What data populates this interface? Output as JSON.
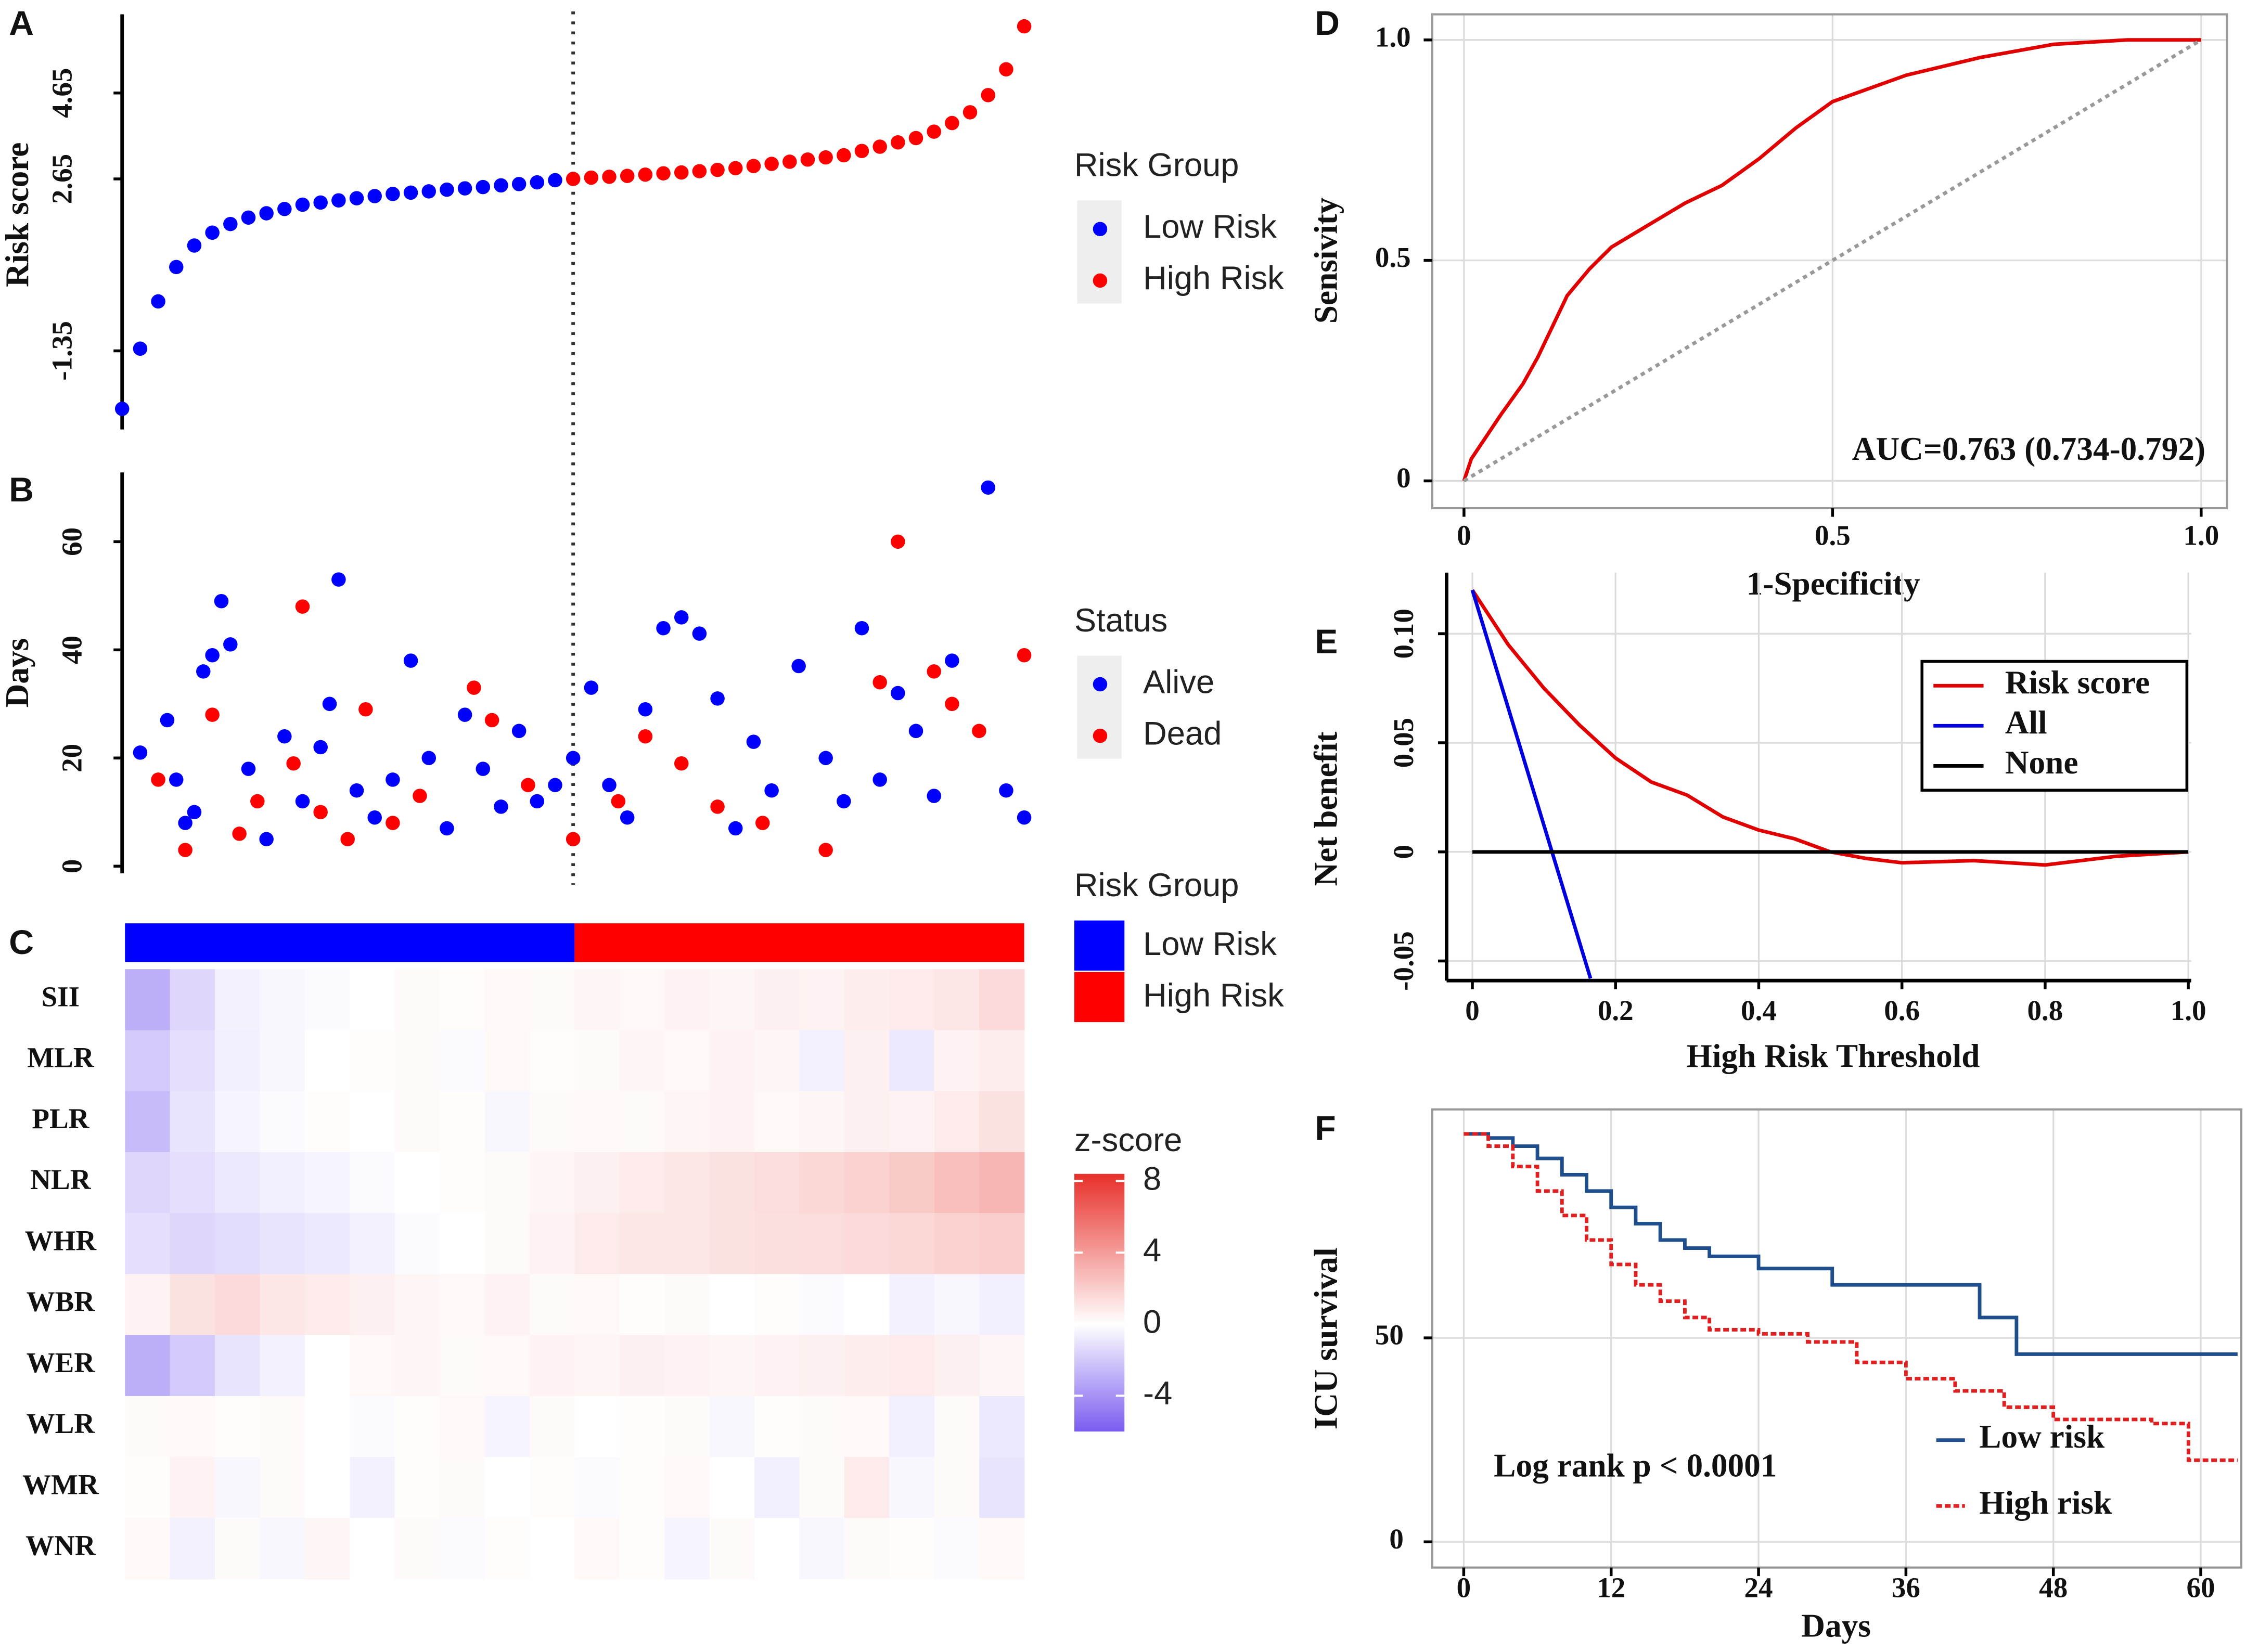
{
  "chart_data": [
    {
      "type": "scatter",
      "panel": "A",
      "ylabel": "Risk score",
      "xlim": [
        0,
        100
      ],
      "ylim": [
        -3.18,
        6.48
      ],
      "yticks": [
        -1.35,
        2.65,
        4.65
      ],
      "legend_title": "Risk Group",
      "series": [
        {
          "name": "Low Risk",
          "color": "#0000ff",
          "x": [
            0,
            2,
            4,
            6,
            8,
            10,
            12,
            14,
            16,
            18,
            20,
            22,
            24,
            26,
            28,
            30,
            32,
            34,
            36,
            38,
            40,
            42,
            44,
            46,
            48
          ],
          "values": [
            -2.7,
            -1.3,
            -0.2,
            0.6,
            1.1,
            1.4,
            1.6,
            1.75,
            1.85,
            1.95,
            2.05,
            2.1,
            2.15,
            2.2,
            2.25,
            2.3,
            2.33,
            2.36,
            2.4,
            2.43,
            2.46,
            2.5,
            2.53,
            2.57,
            2.62
          ]
        },
        {
          "name": "High Risk",
          "color": "#ff0000",
          "x": [
            50,
            52,
            54,
            56,
            58,
            60,
            62,
            64,
            66,
            68,
            70,
            72,
            74,
            76,
            78,
            80,
            82,
            84,
            86,
            88,
            90,
            92,
            94,
            96,
            98,
            100
          ],
          "values": [
            2.65,
            2.68,
            2.7,
            2.72,
            2.75,
            2.78,
            2.8,
            2.83,
            2.86,
            2.9,
            2.95,
            3.0,
            3.05,
            3.1,
            3.15,
            3.2,
            3.3,
            3.4,
            3.5,
            3.6,
            3.75,
            3.95,
            4.2,
            4.6,
            5.2,
            6.2
          ]
        }
      ]
    },
    {
      "type": "scatter",
      "panel": "B",
      "ylabel": "Days",
      "xlim": [
        0,
        100
      ],
      "ylim": [
        -1.3,
        72.8
      ],
      "yticks": [
        0,
        20,
        40,
        60
      ],
      "legend_title": "Status",
      "series": [
        {
          "name": "Alive",
          "color": "#0000ff",
          "x": [
            2,
            5,
            6,
            7,
            8,
            9,
            10,
            11,
            12,
            14,
            16,
            18,
            20,
            22,
            23,
            24,
            26,
            28,
            30,
            32,
            34,
            36,
            38,
            40,
            42,
            44,
            46,
            48,
            50,
            52,
            54,
            56,
            58,
            60,
            62,
            64,
            66,
            68,
            70,
            72,
            75,
            78,
            80,
            82,
            84,
            86,
            88,
            90,
            92,
            96,
            98,
            100
          ],
          "values": [
            21,
            27,
            16,
            8,
            10,
            36,
            39,
            49,
            41,
            18,
            5,
            24,
            12,
            22,
            30,
            53,
            14,
            9,
            16,
            38,
            20,
            7,
            28,
            18,
            11,
            25,
            12,
            15,
            20,
            33,
            15,
            9,
            29,
            44,
            46,
            43,
            31,
            7,
            23,
            14,
            37,
            20,
            12,
            44,
            16,
            32,
            25,
            13,
            38,
            70,
            14,
            9
          ]
        },
        {
          "name": "Dead",
          "color": "#ff0000",
          "x": [
            4,
            7,
            10,
            13,
            15,
            19,
            20,
            22,
            25,
            27,
            30,
            33,
            39,
            41,
            45,
            50,
            55,
            58,
            62,
            66,
            71,
            78,
            84,
            86,
            90,
            92,
            95,
            100
          ],
          "values": [
            16,
            3,
            28,
            6,
            12,
            19,
            48,
            10,
            5,
            29,
            8,
            13,
            33,
            27,
            15,
            5,
            12,
            24,
            19,
            11,
            8,
            3,
            34,
            60,
            36,
            30,
            25,
            39
          ]
        }
      ]
    },
    {
      "type": "heatmap",
      "panel": "C",
      "rows": [
        "SII",
        "MLR",
        "PLR",
        "NLR",
        "WHR",
        "WBR",
        "WER",
        "WLR",
        "WMR",
        "WNR"
      ],
      "group_title": "Risk Group",
      "groups": [
        {
          "name": "Low Risk",
          "color": "#0000ff",
          "columns": 10
        },
        {
          "name": "High Risk",
          "color": "#ff0000",
          "columns": 10
        }
      ],
      "legend_title": "z-score",
      "zlim": [
        -6,
        8.4
      ],
      "zticks": [
        8,
        4,
        0,
        -4
      ],
      "colors": [
        "#7b5cf0",
        "#ffffff",
        "#e8302a"
      ],
      "values": [
        [
          -3,
          -1.5,
          -0.5,
          -0.3,
          -0.2,
          0,
          0.2,
          0.1,
          0.3,
          0.2,
          0.4,
          0.3,
          0.5,
          0.4,
          0.6,
          0.5,
          0.7,
          0.8,
          1.0,
          1.5
        ],
        [
          -2,
          -1.2,
          -0.6,
          -0.3,
          0,
          0.1,
          0.2,
          -0.2,
          0.3,
          0.1,
          0.2,
          0.4,
          0.3,
          0.5,
          0.4,
          -0.5,
          0.6,
          -0.8,
          0.5,
          0.7
        ],
        [
          -2.5,
          -1,
          -0.4,
          -0.2,
          0.1,
          0,
          0.2,
          0.1,
          -0.3,
          0.2,
          0.3,
          0.2,
          0.4,
          0.5,
          0.3,
          0.4,
          0.6,
          0.5,
          0.8,
          1.2
        ],
        [
          -1.5,
          -1.2,
          -0.8,
          -0.6,
          -0.4,
          -0.2,
          0,
          0.1,
          0.2,
          0.4,
          0.6,
          0.8,
          1,
          1.2,
          1.4,
          1.6,
          1.8,
          2.2,
          2.6,
          3
        ],
        [
          -1.2,
          -1.5,
          -1.3,
          -1.0,
          -0.8,
          -0.5,
          -0.2,
          0,
          0.2,
          0.5,
          0.8,
          1,
          1,
          1.2,
          1.3,
          1.4,
          1.5,
          1.6,
          1.8,
          2
        ],
        [
          0.5,
          1.2,
          1.5,
          1,
          0.8,
          0.6,
          0.4,
          0.3,
          0.5,
          0.2,
          0.3,
          0.1,
          0.2,
          0,
          0.1,
          -0.2,
          0,
          -0.5,
          -0.3,
          -0.6
        ],
        [
          -3,
          -2,
          -1,
          -0.5,
          0,
          0.3,
          0.4,
          0.2,
          0.3,
          0.5,
          0.4,
          0.6,
          0.5,
          0.4,
          0.5,
          0.6,
          0.7,
          0.8,
          0.6,
          0.4
        ],
        [
          0.2,
          0.3,
          0.1,
          0.2,
          0,
          -0.2,
          0.1,
          0.3,
          -0.4,
          0.2,
          0,
          0.1,
          0.2,
          -0.3,
          0.1,
          0.2,
          0.3,
          -0.6,
          0.2,
          -0.8
        ],
        [
          0.1,
          0.5,
          -0.3,
          0.2,
          0,
          -0.5,
          0.1,
          0.2,
          0,
          0.1,
          -0.2,
          0.1,
          0.3,
          0,
          -0.6,
          0.2,
          0.8,
          -0.3,
          0.2,
          -1
        ],
        [
          0.3,
          -0.5,
          0.2,
          -0.3,
          0.4,
          0,
          0.2,
          -0.2,
          0.1,
          0,
          0.3,
          0.1,
          -0.4,
          0.2,
          0,
          -0.3,
          0.2,
          0.1,
          -0.2,
          0.3
        ]
      ]
    },
    {
      "type": "line",
      "panel": "D",
      "xlabel": "1-Specificity",
      "ylabel": "Sensivity",
      "xlim": [
        -0.043,
        1.035
      ],
      "ylim": [
        -0.062,
        1.058
      ],
      "xticks": [
        0,
        0.5,
        {
          "value": 1,
          "label": "1.0"
        }
      ],
      "yticks": [
        0,
        0.5,
        {
          "value": 1,
          "label": "1.0"
        }
      ],
      "grid": true,
      "annotation": "AUC=0.763 (0.734-0.792)",
      "series": [
        {
          "color": "#e00000",
          "x": [
            0,
            0.01,
            0.03,
            0.05,
            0.08,
            0.1,
            0.12,
            0.14,
            0.17,
            0.2,
            0.25,
            0.3,
            0.35,
            0.4,
            0.45,
            0.5,
            0.55,
            0.6,
            0.7,
            0.8,
            0.9,
            1
          ],
          "values": [
            0,
            0.05,
            0.1,
            0.15,
            0.22,
            0.28,
            0.35,
            0.42,
            0.48,
            0.53,
            0.58,
            0.63,
            0.67,
            0.73,
            0.8,
            0.86,
            0.89,
            0.92,
            0.96,
            0.99,
            1,
            1
          ]
        },
        {
          "color": "#999999",
          "dash": "3 3",
          "x": [
            0,
            1
          ],
          "values": [
            0,
            1
          ]
        }
      ]
    },
    {
      "type": "line",
      "panel": "E",
      "xlabel": "High Risk Threshold",
      "ylabel": "Net benefit",
      "xlim": [
        -0.036,
        1.004
      ],
      "ylim": [
        -0.059,
        0.128
      ],
      "xticks": [
        0,
        0.2,
        0.4,
        0.6,
        0.8,
        {
          "value": 1,
          "label": "1.0"
        }
      ],
      "yticks": [
        -0.05,
        0,
        0.05,
        {
          "value": 0.1,
          "label": "0.10"
        }
      ],
      "grid": true,
      "legend": "top-right",
      "series": [
        {
          "name": "Risk score",
          "color": "#e00000",
          "x": [
            0,
            0.05,
            0.1,
            0.15,
            0.2,
            0.25,
            0.3,
            0.35,
            0.4,
            0.45,
            0.5,
            0.55,
            0.6,
            0.7,
            0.8,
            0.9,
            1
          ],
          "values": [
            0.12,
            0.095,
            0.075,
            0.058,
            0.043,
            0.032,
            0.026,
            0.016,
            0.01,
            0.006,
            0,
            -0.003,
            -0.005,
            -0.004,
            -0.006,
            -0.002,
            0
          ]
        },
        {
          "name": "All",
          "color": "#0000dd",
          "x": [
            0,
            0.165
          ],
          "values": [
            0.12,
            -0.058
          ]
        },
        {
          "name": "None",
          "color": "#000000",
          "x": [
            0,
            1
          ],
          "values": [
            0,
            0
          ]
        }
      ]
    },
    {
      "type": "step",
      "panel": "F",
      "xlabel": "Days",
      "ylabel": "ICU survival",
      "xlim": [
        -2.56,
        63.3
      ],
      "ylim": [
        -6.3,
        106
      ],
      "xticks": [
        0,
        12,
        24,
        36,
        48,
        60
      ],
      "yticks": [
        0,
        50
      ],
      "grid": true,
      "annotation": "Log rank p < 0.0001",
      "series": [
        {
          "name": "Low risk",
          "color": "#1f4e8c",
          "x": [
            0,
            2,
            4,
            6,
            8,
            10,
            12,
            14,
            16,
            18,
            20,
            24,
            30,
            36,
            42,
            45,
            63
          ],
          "values": [
            100,
            99,
            97,
            94,
            90,
            86,
            82,
            78,
            74,
            72,
            70,
            67,
            63,
            63,
            55,
            46,
            46
          ]
        },
        {
          "name": "High risk",
          "color": "#e02020",
          "dash": "4 2",
          "x": [
            0,
            2,
            4,
            6,
            8,
            10,
            12,
            14,
            16,
            18,
            20,
            24,
            28,
            32,
            36,
            40,
            44,
            48,
            52,
            56,
            59,
            63
          ],
          "values": [
            100,
            97,
            92,
            86,
            80,
            74,
            68,
            63,
            59,
            55,
            52,
            51,
            49,
            44,
            40,
            37,
            33,
            30,
            30,
            29,
            20,
            20
          ]
        }
      ]
    }
  ]
}
